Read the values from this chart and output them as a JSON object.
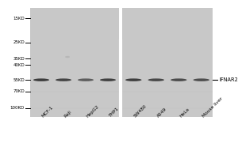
{
  "bg_color": "#ffffff",
  "gel_bg": "#c8c8c8",
  "sample_labels": [
    "MCF-1",
    "Raji",
    "HepG2",
    "THP1",
    "SW480",
    "A549",
    "HeLa",
    "Mouse liver"
  ],
  "mw_markers": [
    "100KD",
    "70KD",
    "55KD",
    "40KD",
    "35KD",
    "25KD",
    "15KD"
  ],
  "mw_positions": [
    100,
    70,
    55,
    40,
    35,
    25,
    15
  ],
  "band_label": "IFNAR2",
  "band_mw": 55,
  "band_intensities": [
    0.9,
    0.75,
    0.3,
    0.82,
    0.85,
    0.7,
    0.62,
    0.58
  ],
  "divider_after_lane": 4,
  "log_min": 1.08,
  "log_max": 2.08
}
